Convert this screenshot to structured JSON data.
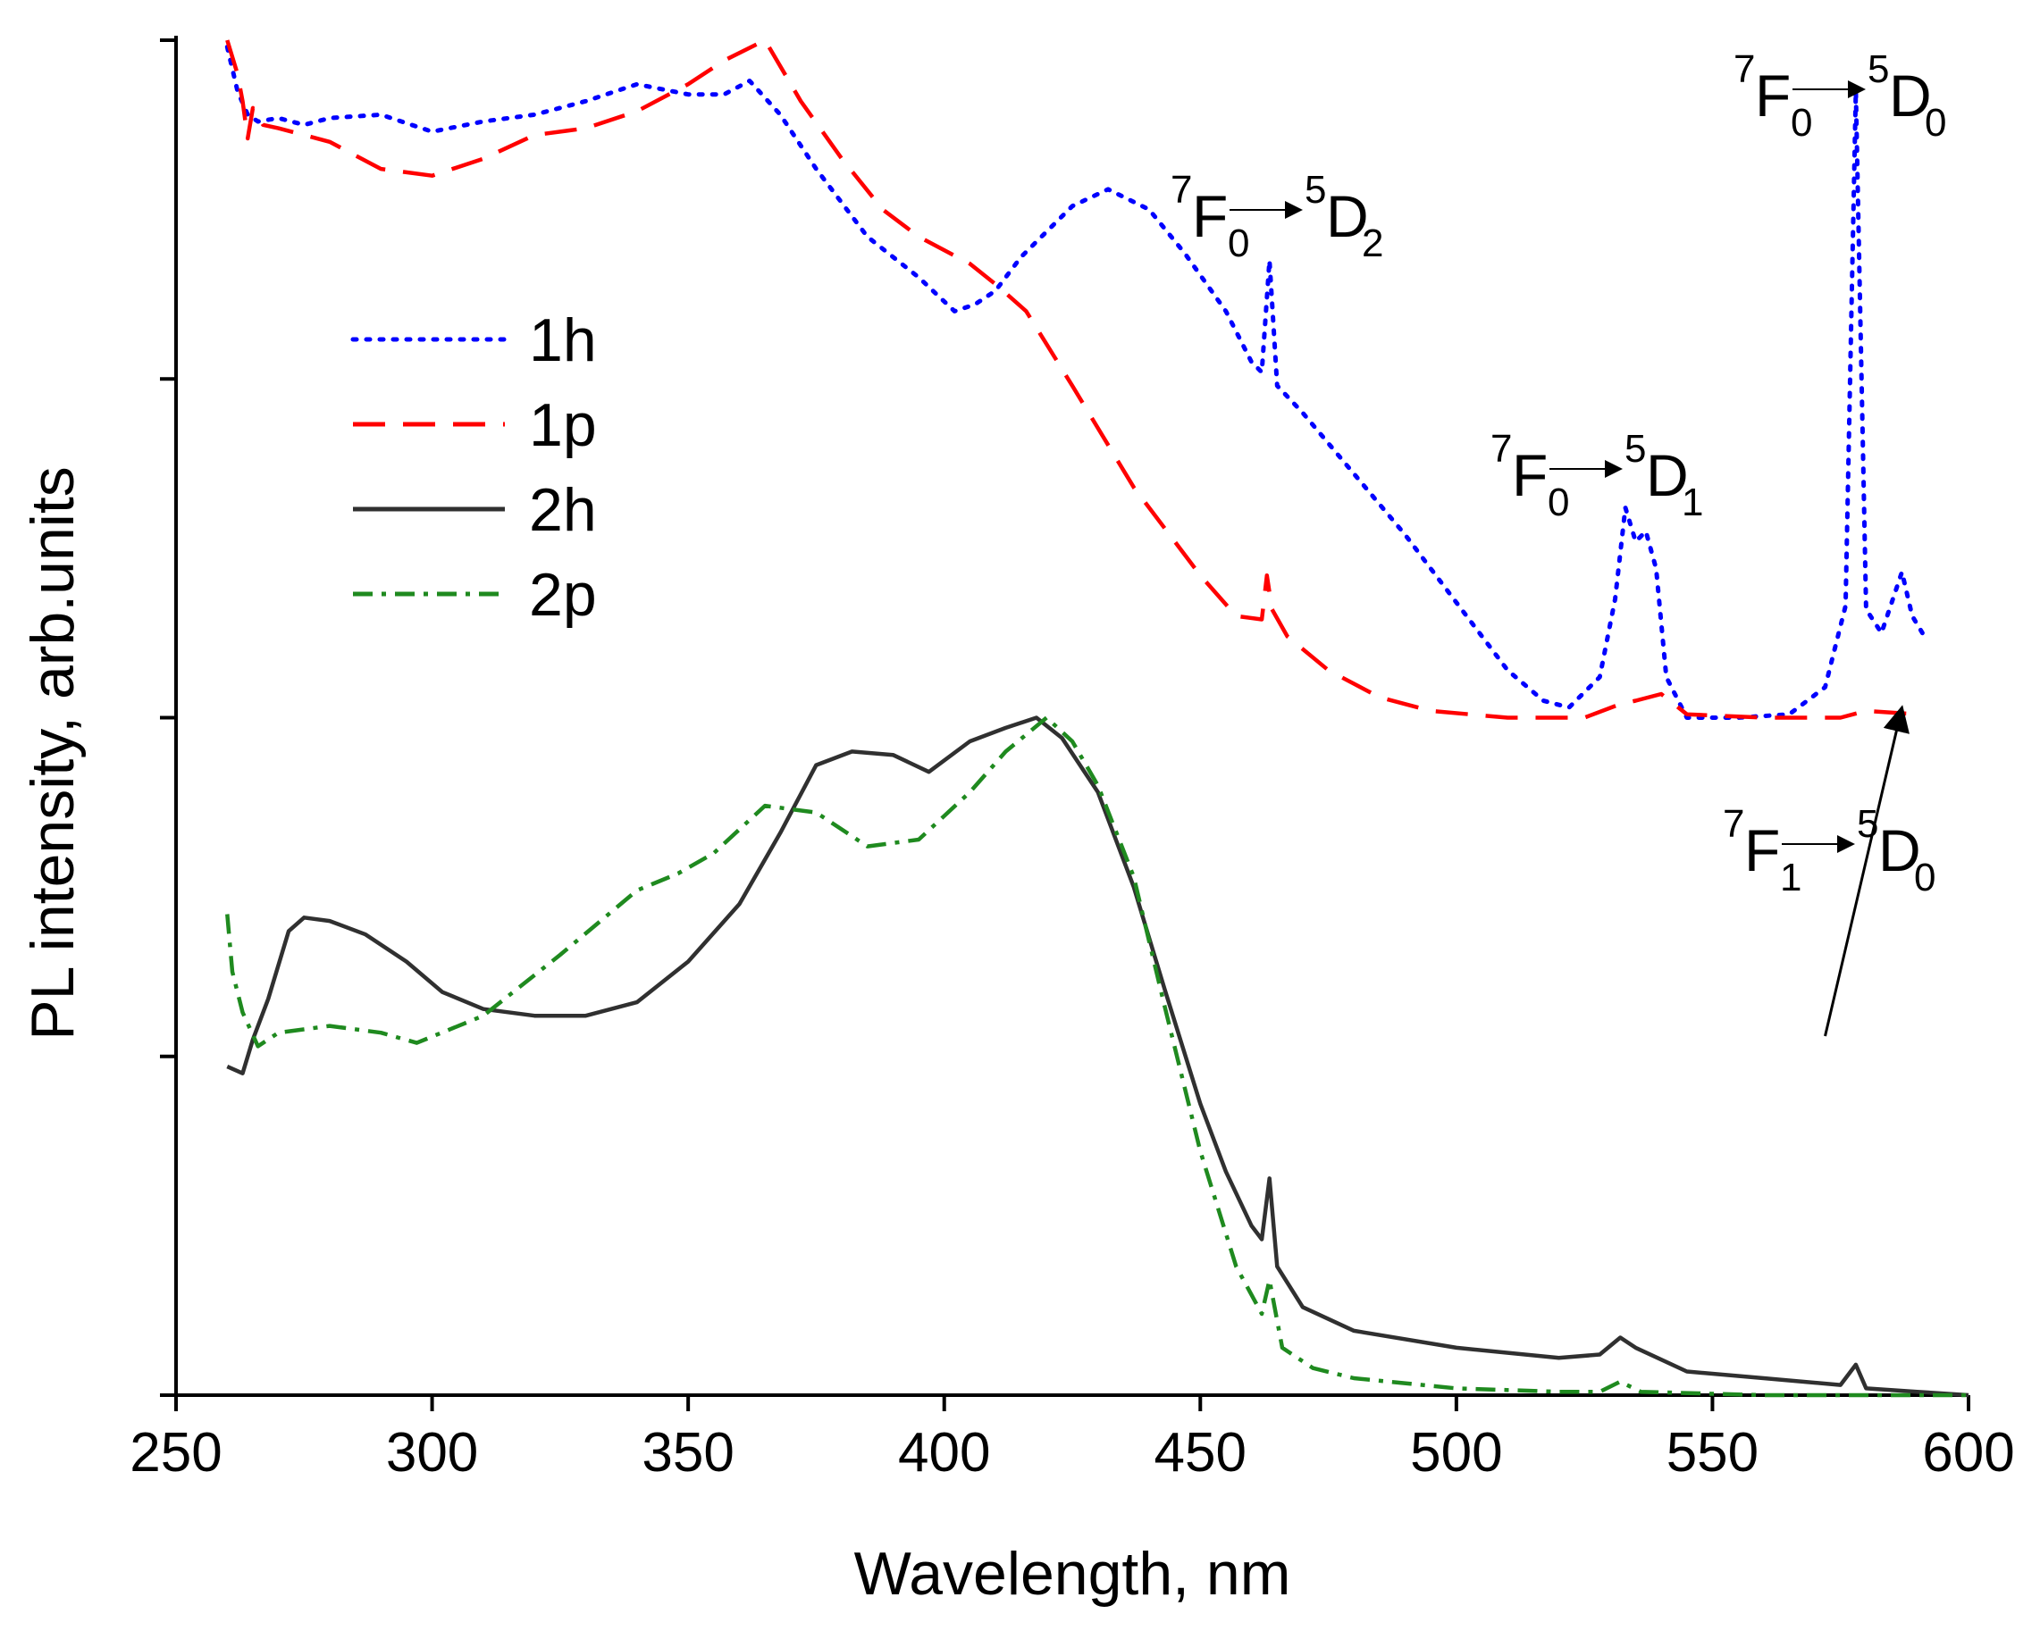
{
  "chart_data": {
    "type": "line",
    "xlabel": "Wavelength, nm",
    "ylabel": "PL intensity, arb.units",
    "xlim": [
      250,
      600
    ],
    "ylim": [
      0,
      4
    ],
    "x_ticks": [
      250,
      300,
      350,
      400,
      450,
      500,
      550,
      600
    ],
    "y_ticks": [
      0,
      1,
      2,
      3,
      4
    ],
    "y_tick_labels_shown": false,
    "grid": false,
    "legend_position": "left-middle",
    "series": [
      {
        "name": "1h",
        "color": "#0000ff",
        "style": "dotted",
        "points": [
          [
            260,
            3.98
          ],
          [
            262,
            3.85
          ],
          [
            264,
            3.78
          ],
          [
            266,
            3.76
          ],
          [
            270,
            3.77
          ],
          [
            275,
            3.75
          ],
          [
            280,
            3.77
          ],
          [
            290,
            3.78
          ],
          [
            300,
            3.73
          ],
          [
            310,
            3.76
          ],
          [
            320,
            3.78
          ],
          [
            330,
            3.82
          ],
          [
            340,
            3.87
          ],
          [
            350,
            3.84
          ],
          [
            357,
            3.84
          ],
          [
            362,
            3.88
          ],
          [
            368,
            3.78
          ],
          [
            375,
            3.62
          ],
          [
            385,
            3.42
          ],
          [
            395,
            3.3
          ],
          [
            402,
            3.2
          ],
          [
            406,
            3.22
          ],
          [
            410,
            3.26
          ],
          [
            415,
            3.36
          ],
          [
            425,
            3.51
          ],
          [
            432,
            3.56
          ],
          [
            440,
            3.5
          ],
          [
            447,
            3.37
          ],
          [
            455,
            3.2
          ],
          [
            460,
            3.05
          ],
          [
            462,
            3.02
          ],
          [
            463.5,
            3.35
          ],
          [
            465,
            2.98
          ],
          [
            470,
            2.9
          ],
          [
            480,
            2.72
          ],
          [
            490,
            2.54
          ],
          [
            500,
            2.34
          ],
          [
            510,
            2.14
          ],
          [
            517,
            2.05
          ],
          [
            522,
            2.03
          ],
          [
            528,
            2.12
          ],
          [
            531,
            2.35
          ],
          [
            533,
            2.62
          ],
          [
            535,
            2.52
          ],
          [
            537,
            2.55
          ],
          [
            539,
            2.44
          ],
          [
            541,
            2.12
          ],
          [
            545,
            2.0
          ],
          [
            555,
            2.0
          ],
          [
            565,
            2.01
          ],
          [
            572,
            2.09
          ],
          [
            576,
            2.33
          ],
          [
            578,
            3.85
          ],
          [
            580,
            2.32
          ],
          [
            583,
            2.25
          ],
          [
            587,
            2.43
          ],
          [
            589,
            2.3
          ],
          [
            591,
            2.25
          ]
        ]
      },
      {
        "name": "1p",
        "color": "#ff0000",
        "style": "dashed",
        "points": [
          [
            260,
            4.0
          ],
          [
            262,
            3.9
          ],
          [
            263,
            3.82
          ],
          [
            264,
            3.71
          ],
          [
            265,
            3.8
          ],
          [
            267,
            3.75
          ],
          [
            270,
            3.74
          ],
          [
            275,
            3.72
          ],
          [
            280,
            3.7
          ],
          [
            290,
            3.62
          ],
          [
            300,
            3.6
          ],
          [
            310,
            3.65
          ],
          [
            320,
            3.72
          ],
          [
            330,
            3.74
          ],
          [
            340,
            3.79
          ],
          [
            350,
            3.87
          ],
          [
            357,
            3.94
          ],
          [
            365,
            4.0
          ],
          [
            372,
            3.82
          ],
          [
            380,
            3.65
          ],
          [
            388,
            3.5
          ],
          [
            395,
            3.42
          ],
          [
            405,
            3.34
          ],
          [
            410,
            3.28
          ],
          [
            416,
            3.2
          ],
          [
            425,
            2.98
          ],
          [
            437,
            2.68
          ],
          [
            450,
            2.42
          ],
          [
            457,
            2.3
          ],
          [
            462,
            2.29
          ],
          [
            463,
            2.42
          ],
          [
            464,
            2.32
          ],
          [
            467,
            2.24
          ],
          [
            475,
            2.14
          ],
          [
            485,
            2.06
          ],
          [
            495,
            2.02
          ],
          [
            510,
            2.0
          ],
          [
            525,
            2.0
          ],
          [
            532,
            2.04
          ],
          [
            535,
            2.05
          ],
          [
            540,
            2.07
          ],
          [
            545,
            2.01
          ],
          [
            560,
            2.0
          ],
          [
            575,
            2.0
          ],
          [
            580,
            2.02
          ],
          [
            590,
            2.01
          ]
        ]
      },
      {
        "name": "2h",
        "color": "#303030",
        "style": "solid",
        "points": [
          [
            260,
            0.97
          ],
          [
            263,
            0.95
          ],
          [
            265,
            1.05
          ],
          [
            268,
            1.17
          ],
          [
            272,
            1.37
          ],
          [
            275,
            1.41
          ],
          [
            280,
            1.4
          ],
          [
            287,
            1.36
          ],
          [
            295,
            1.28
          ],
          [
            302,
            1.19
          ],
          [
            310,
            1.14
          ],
          [
            320,
            1.12
          ],
          [
            330,
            1.12
          ],
          [
            340,
            1.16
          ],
          [
            350,
            1.28
          ],
          [
            360,
            1.45
          ],
          [
            368,
            1.66
          ],
          [
            375,
            1.86
          ],
          [
            382,
            1.9
          ],
          [
            390,
            1.89
          ],
          [
            397,
            1.84
          ],
          [
            405,
            1.93
          ],
          [
            412,
            1.97
          ],
          [
            418,
            2.0
          ],
          [
            423,
            1.94
          ],
          [
            430,
            1.78
          ],
          [
            437,
            1.5
          ],
          [
            443,
            1.2
          ],
          [
            450,
            0.86
          ],
          [
            455,
            0.66
          ],
          [
            460,
            0.5
          ],
          [
            462,
            0.46
          ],
          [
            463.5,
            0.64
          ],
          [
            465,
            0.38
          ],
          [
            470,
            0.26
          ],
          [
            480,
            0.19
          ],
          [
            500,
            0.14
          ],
          [
            520,
            0.11
          ],
          [
            528,
            0.12
          ],
          [
            532,
            0.17
          ],
          [
            535,
            0.14
          ],
          [
            545,
            0.07
          ],
          [
            560,
            0.05
          ],
          [
            575,
            0.03
          ],
          [
            578,
            0.09
          ],
          [
            580,
            0.02
          ],
          [
            590,
            0.01
          ],
          [
            600,
            0.0
          ]
        ]
      },
      {
        "name": "2p",
        "color": "#1f8a1f",
        "style": "dashdot",
        "points": [
          [
            260,
            1.42
          ],
          [
            261,
            1.25
          ],
          [
            263,
            1.13
          ],
          [
            266,
            1.03
          ],
          [
            270,
            1.07
          ],
          [
            280,
            1.09
          ],
          [
            290,
            1.07
          ],
          [
            297,
            1.04
          ],
          [
            310,
            1.12
          ],
          [
            325,
            1.3
          ],
          [
            340,
            1.49
          ],
          [
            348,
            1.54
          ],
          [
            355,
            1.6
          ],
          [
            365,
            1.74
          ],
          [
            375,
            1.72
          ],
          [
            385,
            1.62
          ],
          [
            395,
            1.64
          ],
          [
            405,
            1.78
          ],
          [
            412,
            1.9
          ],
          [
            420,
            2.0
          ],
          [
            425,
            1.93
          ],
          [
            430,
            1.8
          ],
          [
            437,
            1.53
          ],
          [
            443,
            1.15
          ],
          [
            450,
            0.72
          ],
          [
            457,
            0.38
          ],
          [
            462,
            0.24
          ],
          [
            463.5,
            0.34
          ],
          [
            466,
            0.14
          ],
          [
            472,
            0.08
          ],
          [
            480,
            0.05
          ],
          [
            500,
            0.02
          ],
          [
            520,
            0.01
          ],
          [
            528,
            0.01
          ],
          [
            532,
            0.04
          ],
          [
            536,
            0.01
          ],
          [
            560,
            0.0
          ],
          [
            600,
            0.0
          ]
        ]
      }
    ],
    "annotations": [
      {
        "pre": "7",
        "a": "F",
        "a_sub": "0",
        "b_sup": "5",
        "b": "D",
        "b_sub": "0"
      },
      {
        "pre": "7",
        "a": "F",
        "a_sub": "0",
        "b_sup": "5",
        "b": "D",
        "b_sub": "2"
      },
      {
        "pre": "7",
        "a": "F",
        "a_sub": "0",
        "b_sup": "5",
        "b": "D",
        "b_sub": "1"
      },
      {
        "pre": "7",
        "a": "F",
        "a_sub": "1",
        "b_sup": "5",
        "b": "D",
        "b_sub": "0"
      }
    ]
  }
}
